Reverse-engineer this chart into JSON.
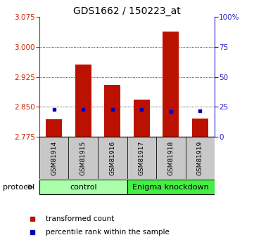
{
  "title": "GDS1662 / 150223_at",
  "samples": [
    "GSM81914",
    "GSM81915",
    "GSM81916",
    "GSM81917",
    "GSM81918",
    "GSM81919"
  ],
  "red_values": [
    2.818,
    2.955,
    2.905,
    2.868,
    3.038,
    2.82
  ],
  "blue_values": [
    2.843,
    2.843,
    2.843,
    2.843,
    2.838,
    2.84
  ],
  "ylim_left": [
    2.775,
    3.075
  ],
  "ylim_right": [
    0,
    100
  ],
  "yticks_left": [
    2.775,
    2.85,
    2.925,
    3.0,
    3.075
  ],
  "yticks_right": [
    0,
    25,
    50,
    75,
    100
  ],
  "ytick_labels_right": [
    "0",
    "25",
    "50",
    "75",
    "100%"
  ],
  "groups": [
    {
      "label": "control",
      "start": 0,
      "end": 3,
      "color": "#AAFFAA"
    },
    {
      "label": "Enigma knockdown",
      "start": 3,
      "end": 6,
      "color": "#44EE44"
    }
  ],
  "bar_width": 0.55,
  "bar_color": "#BB1100",
  "marker_color": "#0000BB",
  "axis_color_left": "#CC2200",
  "axis_color_right": "#2222CC",
  "plot_bg_color": "#ffffff",
  "label_area_color": "#C8C8C8",
  "legend_red_label": "transformed count",
  "legend_blue_label": "percentile rank within the sample",
  "protocol_label": "protocol",
  "base_value": 2.775
}
